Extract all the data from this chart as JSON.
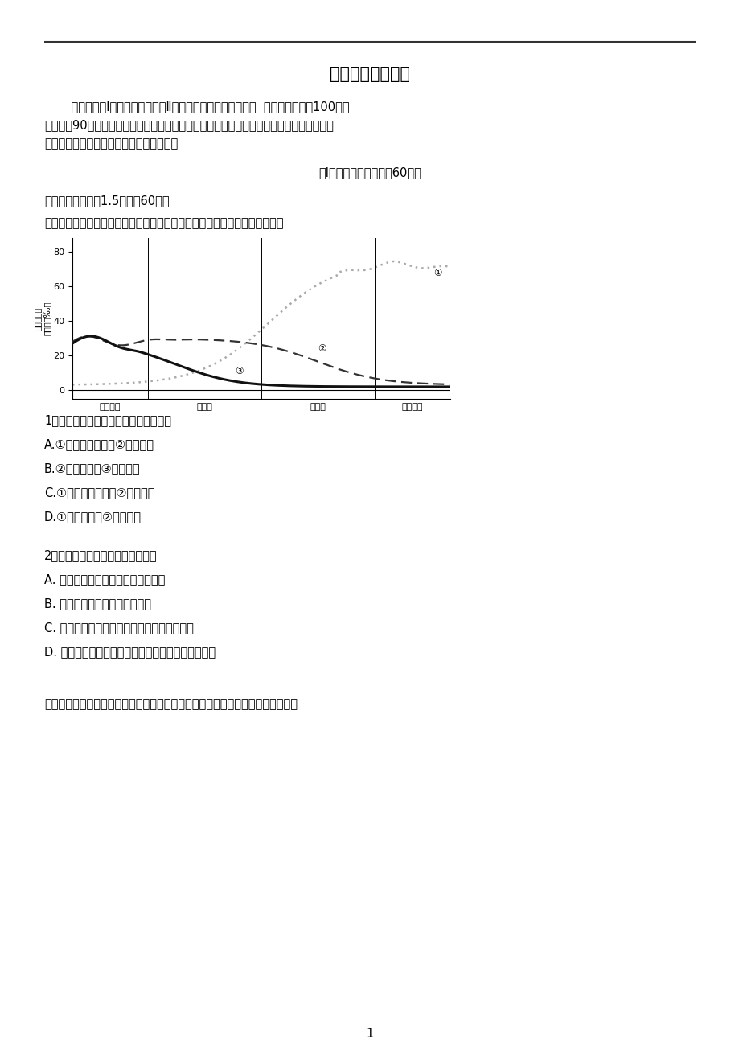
{
  "title": "高一月考地理试题",
  "intro_line1": "    本试卷分第Ⅰ卷（选择题）和第Ⅱ卷（非选择题）两部分，共  页。本试卷满分100分，",
  "intro_line2": "考试用时90分钟。考试结束后，将答题卡和答题纸交回。答卷前，考生务必将自己的姓名、",
  "intro_line3": "准考证号、考试科目等填涂在规定的位置。",
  "section_title": "第Ⅰ卷（单项选择题，共60分）",
  "choice_header": "一、选择题（每题1.5分，共60分）",
  "q_intro": "下图为某国家经济发展时期与其人口数变迁的统计图。读图，完成下面小题。",
  "q1_text": "1．图中各曲线所代表的意义，正确的是",
  "q1_A": "A.①是人口数变化；②是死亡率",
  "q1_B": "B.②是出生率；③是死亡率",
  "q1_C": "C.①是自然增长率；②是出生率",
  "q1_D": "D.①是出生率；②是死亡率",
  "q2_text": "2．关于此统计图的叙述，正确的是",
  "q2_A": "A. 过渡期时，自然增长率达到最大值",
  "q2_B": "B. 过渡期时，死亡率高于出生率",
  "q2_C": "C. 工业前期的出生率与死亡率均低于工业后期",
  "q2_D": "D. 工业期时，自然增长率下降，人口数量也开始下降",
  "last_text": "改革开放以来，我国的人口生育政策进行了动态调整（如下图）。完成下列小题。",
  "page_num": "1",
  "bg_color": "#ffffff",
  "text_color": "#000000"
}
